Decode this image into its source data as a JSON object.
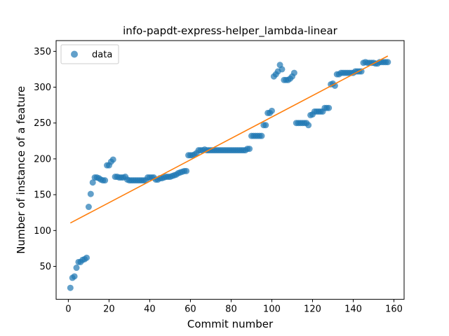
{
  "chart_data": {
    "type": "scatter",
    "title": "info-papdt-express-helper_lambda-linear",
    "xlabel": "Commit number",
    "ylabel": "Number of instance of a feature",
    "xlim": [
      -6,
      165
    ],
    "ylim": [
      4,
      365
    ],
    "xticks": [
      0,
      20,
      40,
      60,
      80,
      100,
      120,
      140,
      160
    ],
    "yticks": [
      50,
      100,
      150,
      200,
      250,
      300,
      350
    ],
    "grid": false,
    "legend_position": "top-left",
    "series": [
      {
        "name": "data",
        "kind": "scatter",
        "color": "#1f77b4",
        "points": [
          [
            1,
            20
          ],
          [
            2,
            34
          ],
          [
            3,
            36
          ],
          [
            4,
            48
          ],
          [
            5,
            56
          ],
          [
            6,
            56
          ],
          [
            7,
            59
          ],
          [
            8,
            60
          ],
          [
            9,
            62
          ],
          [
            10,
            133
          ],
          [
            11,
            151
          ],
          [
            12,
            167
          ],
          [
            13,
            174
          ],
          [
            14,
            174
          ],
          [
            15,
            173
          ],
          [
            16,
            171
          ],
          [
            17,
            170
          ],
          [
            18,
            170
          ],
          [
            19,
            191
          ],
          [
            20,
            191
          ],
          [
            21,
            196
          ],
          [
            22,
            199
          ],
          [
            23,
            175
          ],
          [
            24,
            175
          ],
          [
            25,
            174
          ],
          [
            26,
            174
          ],
          [
            27,
            174
          ],
          [
            28,
            175
          ],
          [
            29,
            171
          ],
          [
            30,
            170
          ],
          [
            31,
            170
          ],
          [
            32,
            170
          ],
          [
            33,
            170
          ],
          [
            34,
            170
          ],
          [
            35,
            170
          ],
          [
            36,
            170
          ],
          [
            37,
            170
          ],
          [
            38,
            170
          ],
          [
            39,
            174
          ],
          [
            40,
            174
          ],
          [
            41,
            174
          ],
          [
            42,
            174
          ],
          [
            43,
            171
          ],
          [
            44,
            171
          ],
          [
            45,
            173
          ],
          [
            46,
            173
          ],
          [
            47,
            174
          ],
          [
            48,
            175
          ],
          [
            49,
            175
          ],
          [
            50,
            175
          ],
          [
            51,
            176
          ],
          [
            52,
            177
          ],
          [
            53,
            178
          ],
          [
            54,
            180
          ],
          [
            55,
            181
          ],
          [
            56,
            182
          ],
          [
            57,
            183
          ],
          [
            58,
            183
          ],
          [
            59,
            205
          ],
          [
            60,
            205
          ],
          [
            61,
            205
          ],
          [
            62,
            206
          ],
          [
            63,
            208
          ],
          [
            64,
            212
          ],
          [
            65,
            212
          ],
          [
            66,
            212
          ],
          [
            67,
            213
          ],
          [
            68,
            212
          ],
          [
            69,
            212
          ],
          [
            70,
            212
          ],
          [
            71,
            212
          ],
          [
            72,
            212
          ],
          [
            73,
            212
          ],
          [
            74,
            212
          ],
          [
            75,
            212
          ],
          [
            76,
            212
          ],
          [
            77,
            212
          ],
          [
            78,
            212
          ],
          [
            79,
            212
          ],
          [
            80,
            212
          ],
          [
            81,
            212
          ],
          [
            82,
            212
          ],
          [
            83,
            212
          ],
          [
            84,
            212
          ],
          [
            85,
            212
          ],
          [
            86,
            212
          ],
          [
            87,
            212
          ],
          [
            88,
            214
          ],
          [
            89,
            214
          ],
          [
            90,
            232
          ],
          [
            91,
            232
          ],
          [
            92,
            232
          ],
          [
            93,
            232
          ],
          [
            94,
            232
          ],
          [
            95,
            232
          ],
          [
            96,
            247
          ],
          [
            97,
            247
          ],
          [
            98,
            264
          ],
          [
            99,
            264
          ],
          [
            100,
            267
          ],
          [
            101,
            315
          ],
          [
            102,
            318
          ],
          [
            103,
            322
          ],
          [
            104,
            331
          ],
          [
            105,
            325
          ],
          [
            106,
            310
          ],
          [
            107,
            310
          ],
          [
            108,
            310
          ],
          [
            109,
            312
          ],
          [
            110,
            315
          ],
          [
            111,
            320
          ],
          [
            112,
            250
          ],
          [
            113,
            250
          ],
          [
            114,
            250
          ],
          [
            115,
            250
          ],
          [
            116,
            250
          ],
          [
            117,
            250
          ],
          [
            118,
            247
          ],
          [
            119,
            261
          ],
          [
            120,
            262
          ],
          [
            121,
            266
          ],
          [
            122,
            266
          ],
          [
            123,
            266
          ],
          [
            124,
            266
          ],
          [
            125,
            266
          ],
          [
            126,
            271
          ],
          [
            127,
            271
          ],
          [
            128,
            271
          ],
          [
            129,
            304
          ],
          [
            130,
            305
          ],
          [
            131,
            302
          ],
          [
            132,
            318
          ],
          [
            133,
            318
          ],
          [
            134,
            320
          ],
          [
            135,
            320
          ],
          [
            136,
            320
          ],
          [
            137,
            320
          ],
          [
            138,
            320
          ],
          [
            139,
            320
          ],
          [
            140,
            320
          ],
          [
            141,
            322
          ],
          [
            142,
            322
          ],
          [
            143,
            322
          ],
          [
            144,
            322
          ],
          [
            145,
            334
          ],
          [
            146,
            335
          ],
          [
            147,
            334
          ],
          [
            148,
            334
          ],
          [
            149,
            334
          ],
          [
            150,
            334
          ],
          [
            151,
            333
          ],
          [
            152,
            333
          ],
          [
            153,
            335
          ],
          [
            154,
            335
          ],
          [
            155,
            335
          ],
          [
            156,
            335
          ],
          [
            157,
            335
          ]
        ]
      },
      {
        "kind": "line",
        "color": "#ff7f0e",
        "x": [
          1,
          157
        ],
        "y": [
          110.5,
          343.5
        ]
      }
    ]
  }
}
